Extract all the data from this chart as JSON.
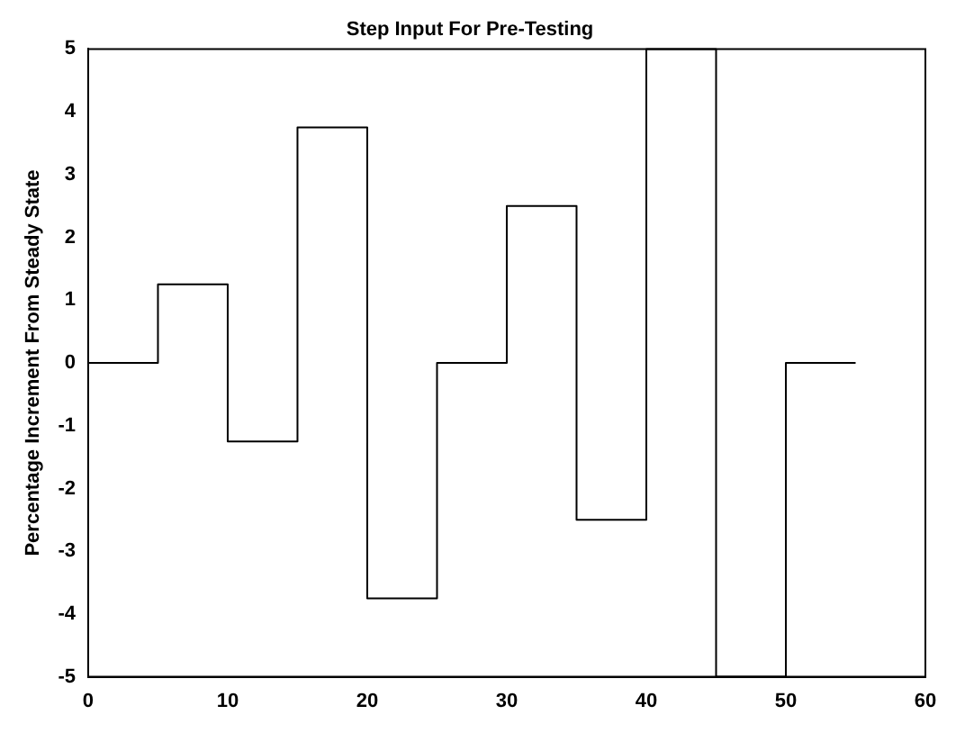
{
  "chart_data": {
    "type": "step",
    "title": "Step Input For Pre-Testing",
    "ylabel": "Percentage Increment From Steady State",
    "x": [
      0,
      5,
      10,
      15,
      20,
      25,
      30,
      35,
      40,
      45,
      50,
      55
    ],
    "series": [
      {
        "color": "#000000",
        "values": [
          0,
          1.25,
          -1.25,
          3.75,
          -3.75,
          0,
          2.5,
          -2.5,
          5,
          -5,
          0,
          0
        ]
      }
    ],
    "xlim": [
      0,
      60
    ],
    "xticks": [
      0,
      10,
      20,
      30,
      40,
      50,
      60
    ],
    "ylim": [
      -5,
      5
    ],
    "yticks": [
      -5,
      -4,
      -3,
      -2,
      -1,
      0,
      1,
      2,
      3,
      4,
      5
    ],
    "grid": false,
    "legend": false,
    "marker": "none",
    "line_style": "solid"
  }
}
